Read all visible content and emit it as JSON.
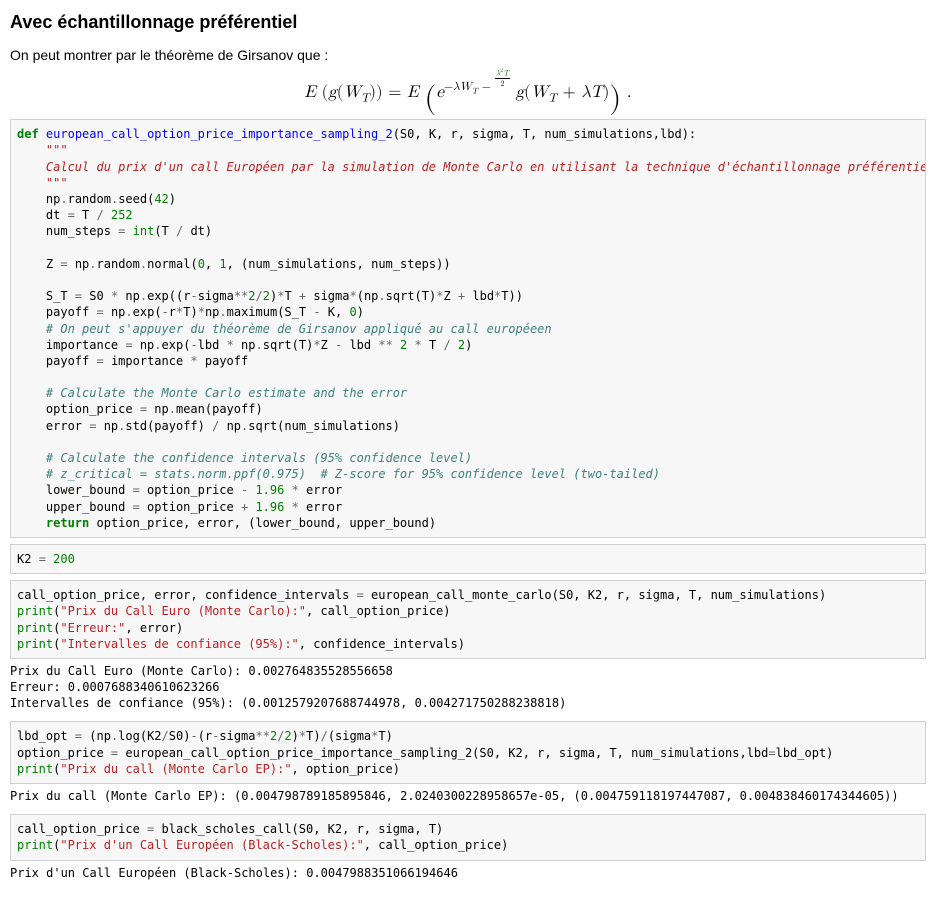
{
  "heading": "Avec échantillonnage préférentiel",
  "intro": "On peut montrer par le théorème de Girsanov que :",
  "formula_html": "<span class='ital'>E</span> (<span class='ital'>g</span>(<span class='ital'>W</span><sub>T</sub>)) = <span class='ital'>E</span> <span class='lp'>(</span><span class='ital'>e</span><sup>&minus;<span class='ital'>&lambda;W</span><sub>T</sub>&nbsp;&minus;&nbsp;<span class='frac'><span class='num'><span class='ital'>&lambda;</span><sup>2</sup><span class='ital'>T</span></span><span class='den'>2</span></span></sup> <span class='ital'>g</span>(<span class='ital'>W</span><sub>T</sub> + <span class='ital'>&lambda;T</span>)<span class='rp'>)</span> .",
  "code1_html": "<span class='kw'>def</span> <span class='fn'>european_call_option_price_importance_sampling_2</span>(S0, K, r, sigma, T, num_simulations,lbd):\n    <span class='doc'>\"\"\"</span>\n<span class='doc'>    Calcul du prix d'un call Européen par la simulation de Monte Carlo en utilisant la technique d'échantillonnage préférentiel</span>\n<span class='doc'>    \"\"\"</span>\n    np<span class='op'>.</span>random<span class='op'>.</span>seed(<span class='num'>42</span>)\n    dt <span class='op'>=</span> T <span class='op'>/</span> <span class='num'>252</span>\n    num_steps <span class='op'>=</span> <span class='bltn'>int</span>(T <span class='op'>/</span> dt)\n\n    Z <span class='op'>=</span> np<span class='op'>.</span>random<span class='op'>.</span>normal(<span class='num'>0</span>, <span class='num'>1</span>, (num_simulations, num_steps))\n\n    S_T <span class='op'>=</span> S0 <span class='op'>*</span> np<span class='op'>.</span>exp((r<span class='op'>-</span>sigma<span class='op'>**</span><span class='num'>2</span><span class='op'>/</span><span class='num'>2</span>)<span class='op'>*</span>T <span class='op'>+</span> sigma<span class='op'>*</span>(np<span class='op'>.</span>sqrt(T)<span class='op'>*</span>Z <span class='op'>+</span> lbd<span class='op'>*</span>T))\n    payoff <span class='op'>=</span> np<span class='op'>.</span>exp(<span class='op'>-</span>r<span class='op'>*</span>T)<span class='op'>*</span>np<span class='op'>.</span>maximum(S_T <span class='op'>-</span> K, <span class='num'>0</span>)\n    <span class='com'># On peut s'appuyer du théorème de Girsanov appliqué au call européeen</span>\n    importance <span class='op'>=</span> np<span class='op'>.</span>exp(<span class='op'>-</span>lbd <span class='op'>*</span> np<span class='op'>.</span>sqrt(T)<span class='op'>*</span>Z <span class='op'>-</span> lbd <span class='op'>**</span> <span class='num'>2</span> <span class='op'>*</span> T <span class='op'>/</span> <span class='num'>2</span>)\n    payoff <span class='op'>=</span> importance <span class='op'>*</span> payoff\n\n    <span class='com'># Calculate the Monte Carlo estimate and the error</span>\n    option_price <span class='op'>=</span> np<span class='op'>.</span>mean(payoff)\n    error <span class='op'>=</span> np<span class='op'>.</span>std(payoff) <span class='op'>/</span> np<span class='op'>.</span>sqrt(num_simulations)\n\n    <span class='com'># Calculate the confidence intervals (95% confidence level)</span>\n    <span class='com'># z_critical = stats.norm.ppf(0.975)  # Z-score for 95% confidence level (two-tailed)</span>\n    lower_bound <span class='op'>=</span> option_price <span class='op'>-</span> <span class='num'>1.96</span> <span class='op'>*</span> error\n    upper_bound <span class='op'>=</span> option_price <span class='op'>+</span> <span class='num'>1.96</span> <span class='op'>*</span> error\n    <span class='kw'>return</span> option_price, error, (lower_bound, upper_bound)",
  "code2_html": "K2 <span class='op'>=</span> <span class='num'>200</span>",
  "code3_html": "call_option_price, error, confidence_intervals <span class='op'>=</span> european_call_monte_carlo(S0, K2, r, sigma, T, num_simulations)\n<span class='bltn'>print</span>(<span class='str'>\"Prix du Call Euro (Monte Carlo):\"</span>, call_option_price)\n<span class='bltn'>print</span>(<span class='str'>\"Erreur:\"</span>, error)\n<span class='bltn'>print</span>(<span class='str'>\"Intervalles de confiance (95%):\"</span>, confidence_intervals)",
  "out3": "Prix du Call Euro (Monte Carlo): 0.002764835528556658\nErreur: 0.0007688340610623266\nIntervalles de confiance (95%): (0.0012579207688744978, 0.004271750288238818)",
  "code4_html": "lbd_opt <span class='op'>=</span> (np<span class='op'>.</span>log(K2<span class='op'>/</span>S0)<span class='op'>-</span>(r<span class='op'>-</span>sigma<span class='op'>**</span><span class='num'>2</span><span class='op'>/</span><span class='num'>2</span>)<span class='op'>*</span>T)<span class='op'>/</span>(sigma<span class='op'>*</span>T)\noption_price <span class='op'>=</span> european_call_option_price_importance_sampling_2(S0, K2, r, sigma, T, num_simulations,lbd<span class='op'>=</span>lbd_opt)\n<span class='bltn'>print</span>(<span class='str'>\"Prix du call (Monte Carlo EP):\"</span>, option_price)",
  "out4": "Prix du call (Monte Carlo EP): (0.004798789185895846, 2.0240300228958657e-05, (0.004759118197447087, 0.004838460174344605))",
  "code5_html": "call_option_price <span class='op'>=</span> black_scholes_call(S0, K2, r, sigma, T)\n<span class='bltn'>print</span>(<span class='str'>\"Prix d'un Call Européen (Black-Scholes):\"</span>, call_option_price)",
  "out5": "Prix d'un Call Européen (Black-Scholes): 0.0047988351066194646",
  "colors": {
    "cell_bg": "#f7f7f7",
    "cell_border": "#cfcfcf",
    "keyword": "#008000",
    "funcname": "#0000ff",
    "string": "#ba2121",
    "comment": "#408080",
    "operator": "#666666"
  }
}
